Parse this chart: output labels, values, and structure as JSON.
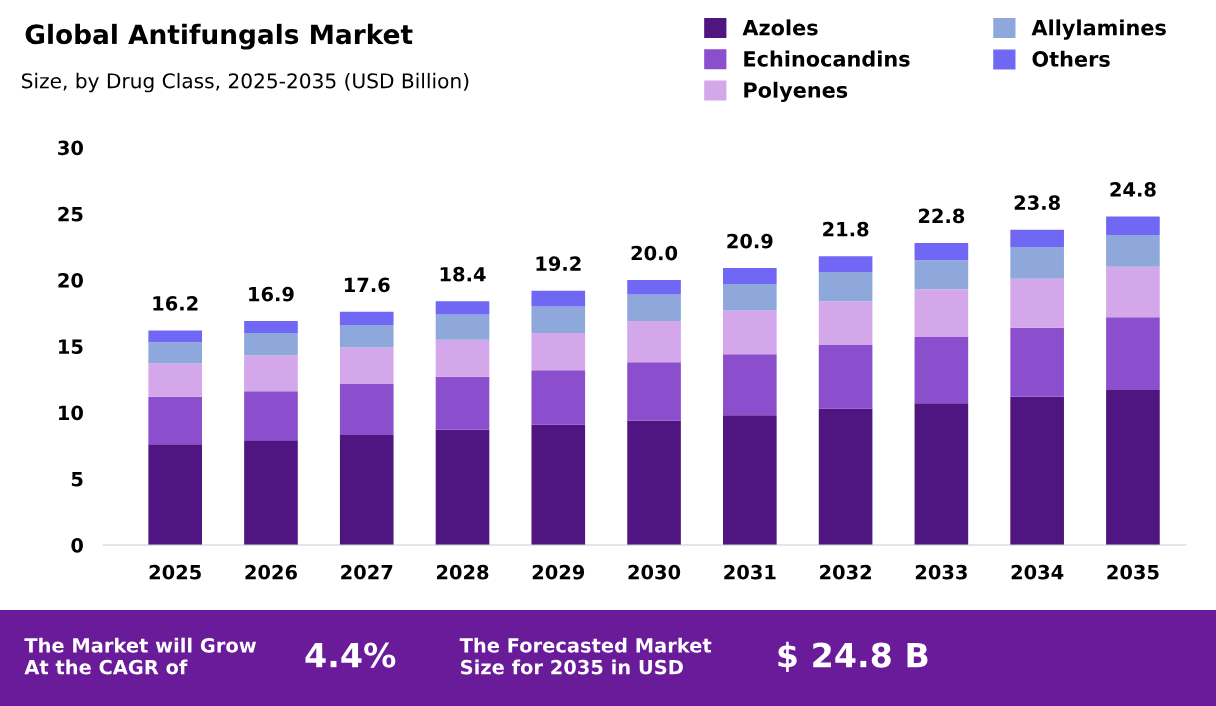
{
  "chart_data": {
    "type": "bar",
    "title": "Global Antifungals Market",
    "subtitle": "Size, by Drug Class, 2025-2035 (USD Billion)",
    "categories": [
      "2025",
      "2026",
      "2027",
      "2028",
      "2029",
      "2030",
      "2031",
      "2032",
      "2033",
      "2034",
      "2035"
    ],
    "stacked": true,
    "legend": "top right",
    "grid": false,
    "ylim": [
      0,
      30
    ],
    "yticks": [
      0,
      5,
      10,
      15,
      20,
      25,
      30
    ],
    "series": [
      {
        "name": "Azoles",
        "color": "#4f1580",
        "values": [
          7.6,
          7.9,
          8.3,
          8.7,
          9.1,
          9.4,
          9.8,
          10.3,
          10.7,
          11.2,
          11.7
        ]
      },
      {
        "name": "Echinocandins",
        "color": "#8b4fcd",
        "values": [
          3.6,
          3.7,
          3.9,
          4.0,
          4.1,
          4.4,
          4.6,
          4.8,
          5.0,
          5.2,
          5.5
        ]
      },
      {
        "name": "Polyenes",
        "color": "#d4a6ea",
        "values": [
          2.5,
          2.7,
          2.7,
          2.8,
          2.8,
          3.1,
          3.3,
          3.3,
          3.6,
          3.7,
          3.8
        ]
      },
      {
        "name": "Allylamines",
        "color": "#8fa8dc",
        "values": [
          1.6,
          1.7,
          1.7,
          1.9,
          2.0,
          2.0,
          2.0,
          2.2,
          2.2,
          2.4,
          2.4
        ]
      },
      {
        "name": "Others",
        "color": "#7067f5",
        "values": [
          0.9,
          0.9,
          1.0,
          1.0,
          1.2,
          1.1,
          1.2,
          1.2,
          1.3,
          1.3,
          1.4
        ]
      }
    ],
    "totals": [
      "16.2",
      "16.9",
      "17.6",
      "18.4",
      "19.2",
      "20.0",
      "20.9",
      "21.8",
      "22.8",
      "23.8",
      "24.8"
    ],
    "annotations": [
      "The Market will Grow\nAt the CAGR of",
      "4.4%",
      "The Forecasted Market\nSize for 2035 in USD",
      "$ 24.8 B"
    ]
  }
}
